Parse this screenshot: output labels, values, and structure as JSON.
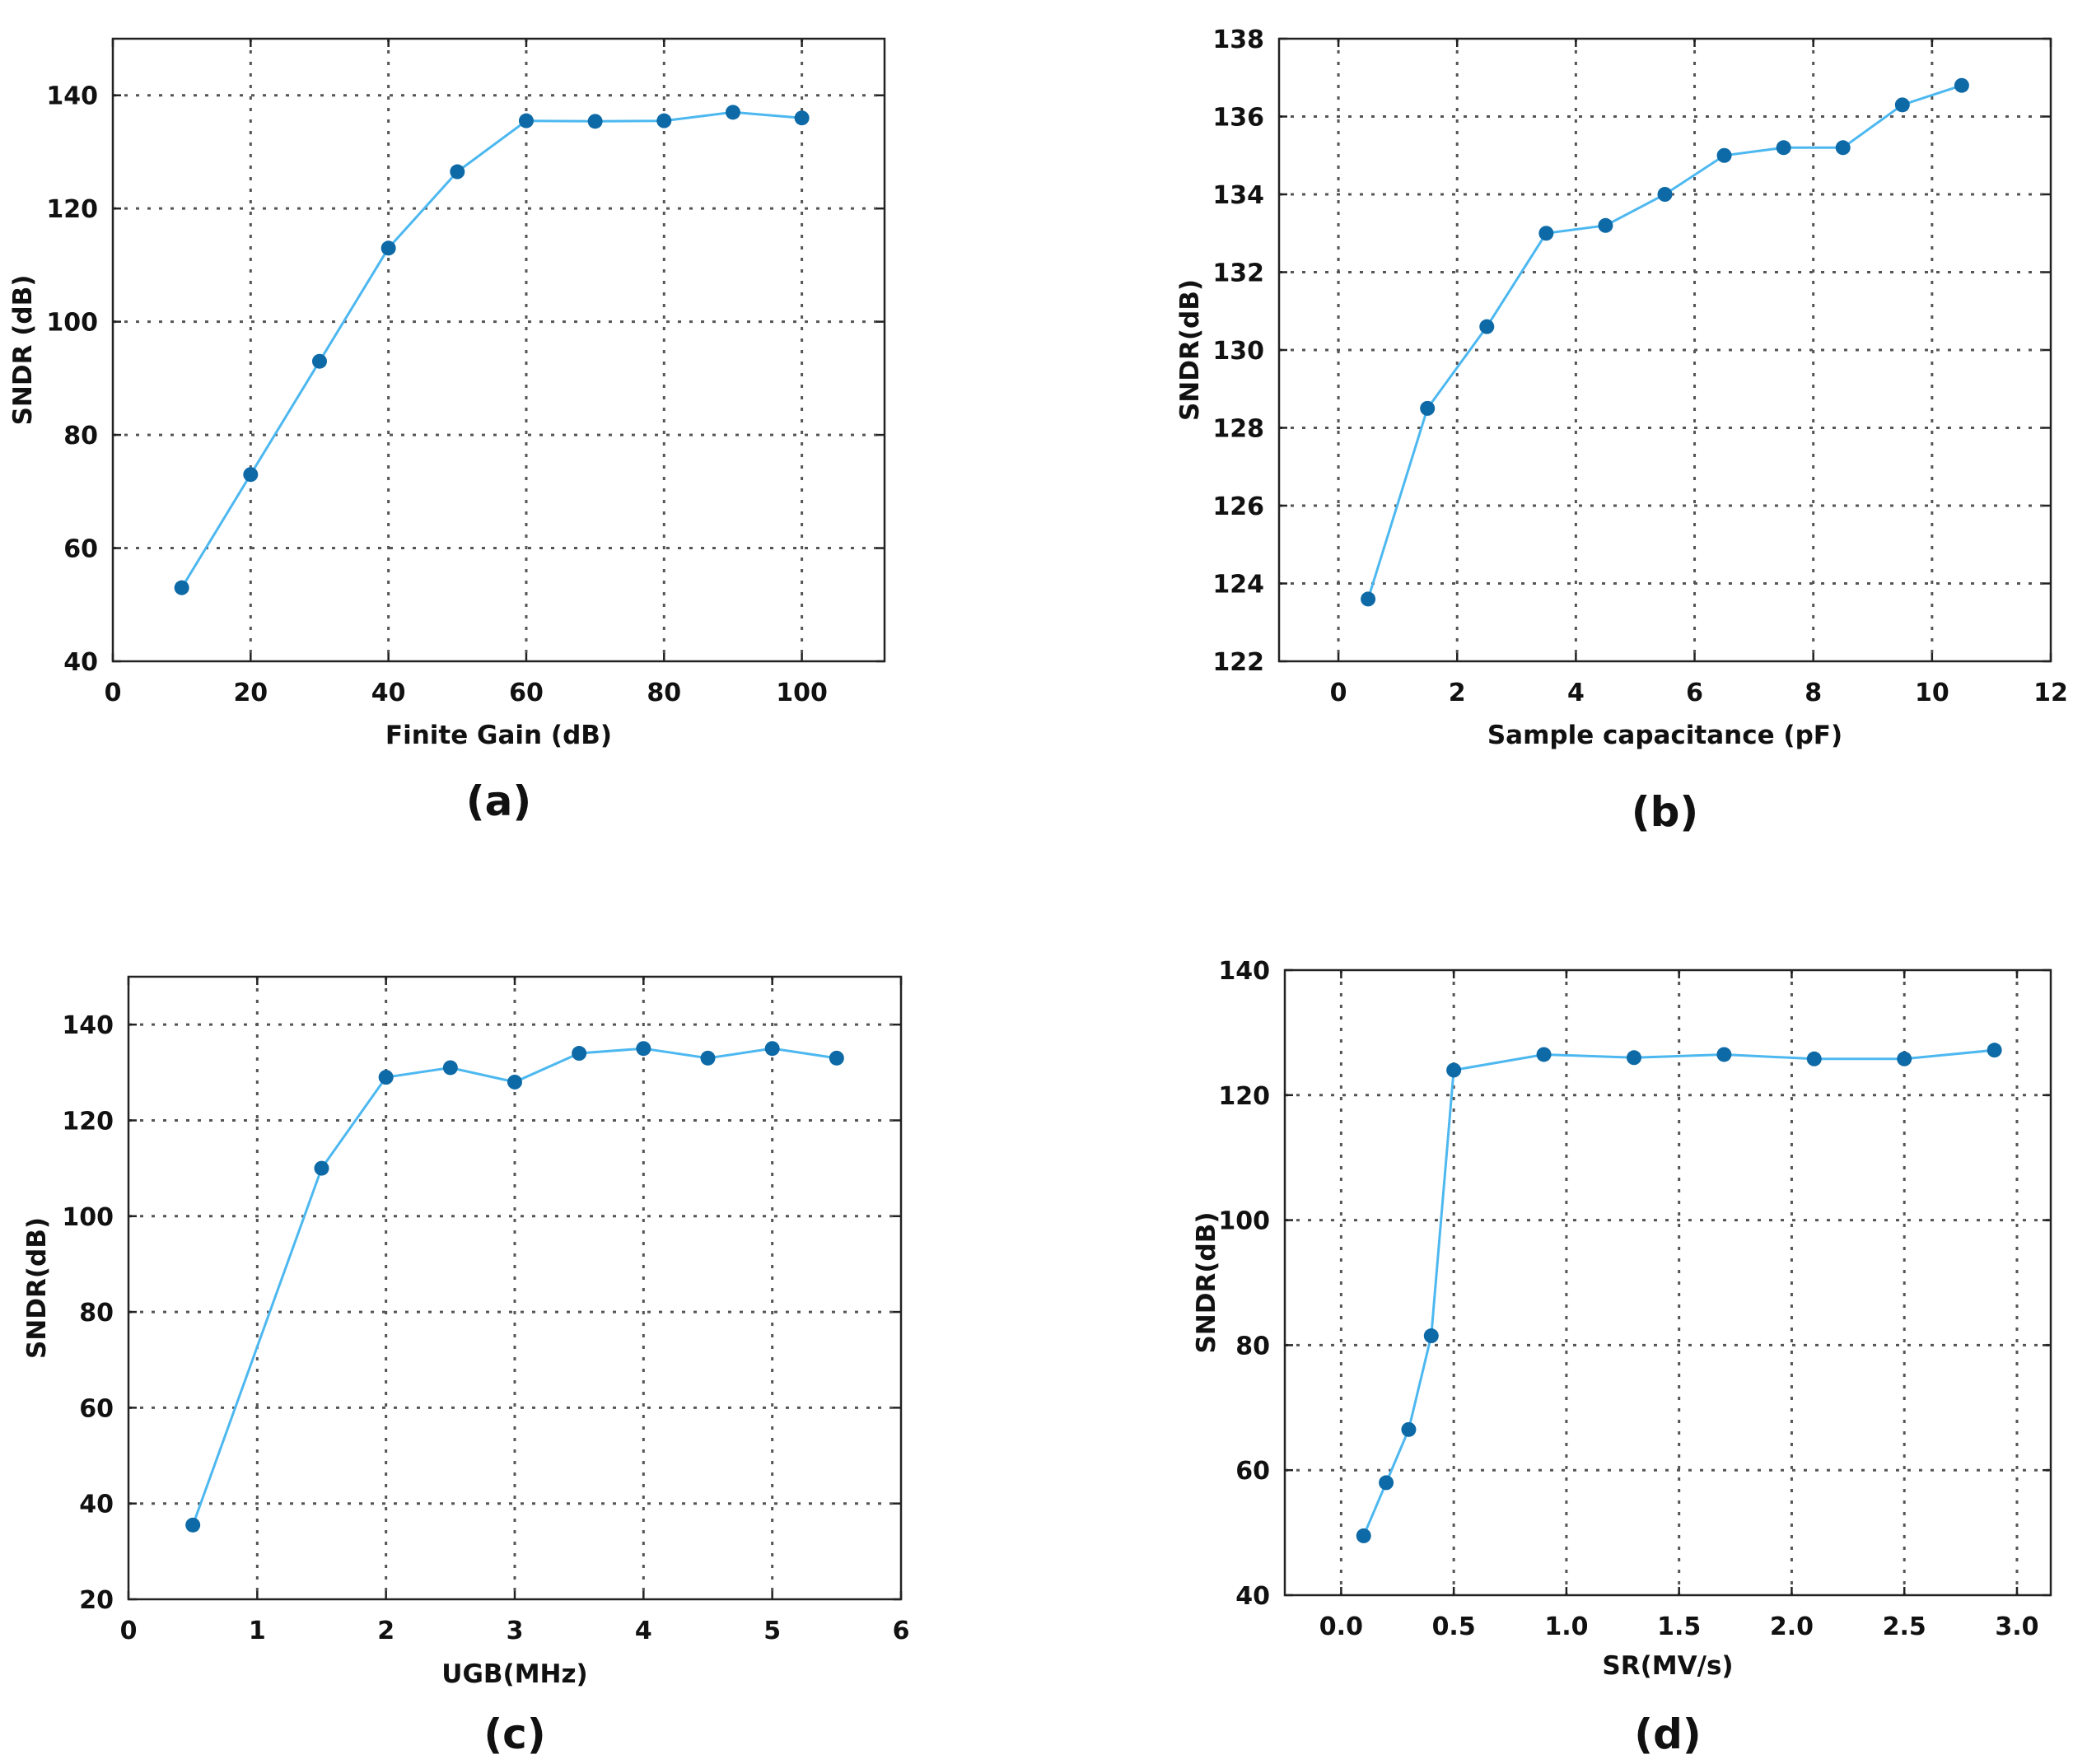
{
  "colors": {
    "line": "#4db8f0",
    "marker": "#0e6aa6",
    "axis": "#222222",
    "grid": "#555555"
  },
  "chart_data": [
    {
      "id": "a",
      "type": "line",
      "caption": "(a)",
      "xlabel": "Finite Gain (dB)",
      "ylabel": "SNDR (dB)",
      "xlim": [
        0,
        112
      ],
      "ylim": [
        40,
        150
      ],
      "xticks": [
        0,
        20,
        40,
        60,
        80,
        100
      ],
      "yticks": [
        40,
        60,
        80,
        100,
        120,
        140
      ],
      "xtick_labels": [
        "0",
        "20",
        "40",
        "60",
        "80",
        "100"
      ],
      "ytick_labels": [
        "40",
        "60",
        "80",
        "100",
        "120",
        "140"
      ],
      "grid": true,
      "x": [
        10,
        20,
        30,
        40,
        50,
        60,
        70,
        80,
        90,
        100
      ],
      "y": [
        53,
        73,
        93,
        113,
        126.5,
        135.5,
        135.4,
        135.5,
        137,
        136
      ]
    },
    {
      "id": "b",
      "type": "line",
      "caption": "(b)",
      "xlabel": "Sample capacitance  (pF)",
      "ylabel": "SNDR(dB)",
      "xlim": [
        -1,
        12
      ],
      "ylim": [
        122,
        138
      ],
      "xticks": [
        0,
        2,
        4,
        6,
        8,
        10,
        12
      ],
      "yticks": [
        122,
        124,
        126,
        128,
        130,
        132,
        134,
        136,
        138
      ],
      "xtick_labels": [
        "0",
        "2",
        "4",
        "6",
        "8",
        "10",
        "12"
      ],
      "ytick_labels": [
        "122",
        "124",
        "126",
        "128",
        "130",
        "132",
        "134",
        "136",
        "138"
      ],
      "grid": true,
      "x": [
        0.5,
        1.5,
        2.5,
        3.5,
        4.5,
        5.5,
        6.5,
        7.5,
        8.5,
        9.5,
        10.5
      ],
      "y": [
        123.6,
        128.5,
        130.6,
        133.0,
        133.2,
        134.0,
        135.0,
        135.2,
        135.2,
        136.3,
        136.8
      ]
    },
    {
      "id": "c",
      "type": "line",
      "caption": "(c)",
      "xlabel": "UGB(MHz)",
      "ylabel": "SNDR(dB)",
      "xlim": [
        0,
        6
      ],
      "ylim": [
        20,
        150
      ],
      "xticks": [
        0,
        1,
        2,
        3,
        4,
        5,
        6
      ],
      "yticks": [
        20,
        40,
        60,
        80,
        100,
        120,
        140
      ],
      "xtick_labels": [
        "0",
        "1",
        "2",
        "3",
        "4",
        "5",
        "6"
      ],
      "ytick_labels": [
        "20",
        "40",
        "60",
        "80",
        "100",
        "120",
        "140"
      ],
      "grid": true,
      "x": [
        0.5,
        1.5,
        2,
        2.5,
        3,
        3.5,
        4,
        4.5,
        5,
        5.5
      ],
      "y": [
        35.5,
        110,
        129,
        131,
        128,
        134,
        135,
        133,
        135,
        133
      ]
    },
    {
      "id": "d",
      "type": "line",
      "caption": "(d)",
      "xlabel": "SR(MV/s)",
      "ylabel": "SNDR(dB)",
      "xlim": [
        -0.25,
        3.15
      ],
      "ylim": [
        40,
        140
      ],
      "xticks": [
        0.0,
        0.5,
        1.0,
        1.5,
        2.0,
        2.5,
        3.0
      ],
      "yticks": [
        40,
        60,
        80,
        100,
        120,
        140
      ],
      "xtick_labels": [
        "0.0",
        "0.5",
        "1.0",
        "1.5",
        "2.0",
        "2.5",
        "3.0"
      ],
      "ytick_labels": [
        "40",
        "60",
        "80",
        "100",
        "120",
        "140"
      ],
      "grid": true,
      "x": [
        0.1,
        0.2,
        0.3,
        0.4,
        0.5,
        0.9,
        1.3,
        1.7,
        2.1,
        2.5,
        2.9
      ],
      "y": [
        49.5,
        58,
        66.5,
        81.5,
        124,
        126.5,
        126,
        126.5,
        125.8,
        125.8,
        127.2
      ]
    }
  ]
}
